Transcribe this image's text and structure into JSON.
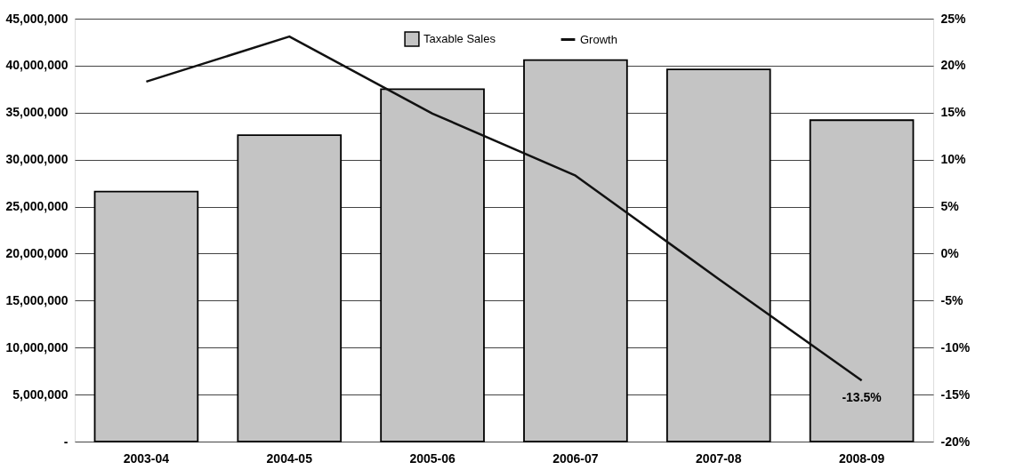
{
  "chart_data": {
    "type": "bar",
    "categories": [
      "2003-04",
      "2004-05",
      "2005-06",
      "2006-07",
      "2007-08",
      "2008-09"
    ],
    "series": [
      {
        "name": "Taxable Sales",
        "color": "#c4c4c4",
        "values": [
          26600000,
          32600000,
          37500000,
          40600000,
          39600000,
          34200000
        ]
      },
      {
        "name": "Growth",
        "type": "line",
        "axis": "y2",
        "color": "#111111",
        "values": [
          18.3,
          23.1,
          14.9,
          8.3,
          -2.7,
          -13.5
        ],
        "value_labels": [
          null,
          null,
          null,
          null,
          null,
          "-13.5%"
        ]
      }
    ],
    "ylim": [
      0,
      45000000
    ],
    "yticks": [
      {
        "value": 0,
        "label": "-"
      },
      {
        "value": 5000000,
        "label": "5,000,000"
      },
      {
        "value": 10000000,
        "label": "10,000,000"
      },
      {
        "value": 15000000,
        "label": "15,000,000"
      },
      {
        "value": 20000000,
        "label": "20,000,000"
      },
      {
        "value": 25000000,
        "label": "25,000,000"
      },
      {
        "value": 30000000,
        "label": "30,000,000"
      },
      {
        "value": 35000000,
        "label": "35,000,000"
      },
      {
        "value": 40000000,
        "label": "40,000,000"
      },
      {
        "value": 45000000,
        "label": "45,000,000"
      }
    ],
    "y2lim": [
      -20,
      25
    ],
    "y2ticks": [
      {
        "value": -20,
        "label": "-20%"
      },
      {
        "value": -15,
        "label": "-15%"
      },
      {
        "value": -10,
        "label": "-10%"
      },
      {
        "value": -5,
        "label": "-5%"
      },
      {
        "value": 0,
        "label": "0%"
      },
      {
        "value": 5,
        "label": "5%"
      },
      {
        "value": 10,
        "label": "10%"
      },
      {
        "value": 15,
        "label": "15%"
      },
      {
        "value": 20,
        "label": "20%"
      },
      {
        "value": 25,
        "label": "25%"
      }
    ],
    "grid": "y",
    "legend": "top",
    "marker": "none",
    "line_style": "solid"
  }
}
